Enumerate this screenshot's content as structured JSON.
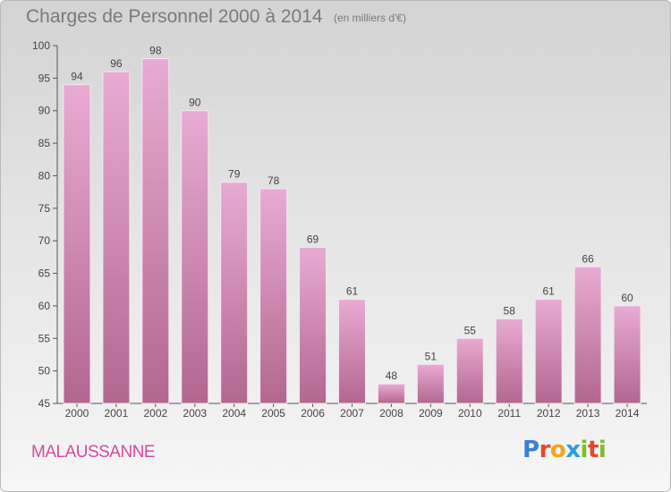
{
  "header": {
    "title": "Charges de Personnel 2000 à 2014",
    "subtitle": "(en milliers d'€)"
  },
  "footer": {
    "city": "MALAUSSANNE",
    "logo": "Proxiti"
  },
  "colors": {
    "bar_top": "#e8abd3",
    "bar_bottom": "#b2678f",
    "city_text": "#d64aa0",
    "logo_letters": [
      "#3b7fd6",
      "#e8452e",
      "#f2a41b",
      "#2b9fd9",
      "#7bbf2a",
      "#e8452e",
      "#7bbf2a"
    ]
  },
  "chart_data": {
    "type": "bar",
    "title": "Charges de Personnel 2000 à 2014",
    "subtitle": "(en milliers d'€)",
    "categories": [
      "2000",
      "2001",
      "2002",
      "2003",
      "2004",
      "2005",
      "2006",
      "2007",
      "2008",
      "2009",
      "2010",
      "2011",
      "2012",
      "2013",
      "2014"
    ],
    "values": [
      94,
      96,
      98,
      90,
      79,
      78,
      69,
      61,
      48,
      51,
      55,
      58,
      61,
      66,
      60
    ],
    "ylim": [
      45,
      100
    ],
    "yticks": [
      45,
      50,
      55,
      60,
      65,
      70,
      75,
      80,
      85,
      90,
      95,
      100
    ],
    "xlabel": "",
    "ylabel": "",
    "grid": false,
    "data_labels": true
  }
}
